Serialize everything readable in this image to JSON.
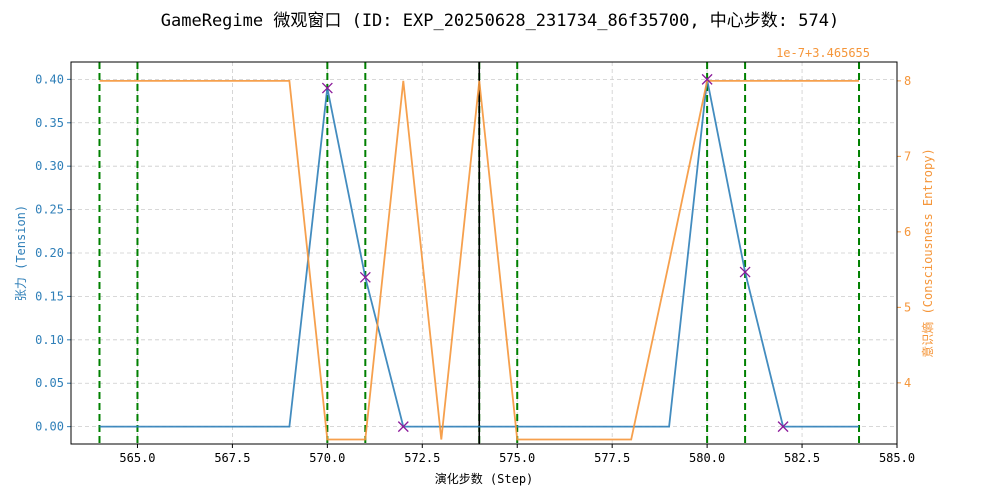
{
  "chart_data": {
    "type": "line",
    "title": "GameRegime 微观窗口 (ID: EXP_20250628_231734_86f35700, 中心步数: 574)",
    "xlabel": "演化步数 (Step)",
    "ylabel_left": "张力 (Tension)",
    "ylabel_right": "意识熵 (Consciousness Entropy)",
    "right_offset_label": "1e-7+3.465655",
    "xlim": [
      563.25,
      585.0
    ],
    "ylim_left": [
      -0.02,
      0.42
    ],
    "ylim_right": [
      3.19,
      8.25
    ],
    "x_ticks": [
      565,
      567.5,
      570,
      572.5,
      575,
      577.5,
      580,
      582.5,
      585
    ],
    "x_tick_labels": [
      "565.0",
      "567.5",
      "570.0",
      "572.5",
      "575.0",
      "577.5",
      "580.0",
      "582.5",
      "585.0"
    ],
    "y_left_ticks": [
      0.0,
      0.05,
      0.1,
      0.15,
      0.2,
      0.25,
      0.3,
      0.35,
      0.4
    ],
    "y_left_tick_labels": [
      "0.00",
      "0.05",
      "0.10",
      "0.15",
      "0.20",
      "0.25",
      "0.30",
      "0.35",
      "0.40"
    ],
    "y_right_ticks": [
      4,
      5,
      6,
      7,
      8
    ],
    "y_right_tick_labels": [
      "4",
      "5",
      "6",
      "7",
      "8"
    ],
    "grid": true,
    "series": [
      {
        "axis": "left",
        "color": "#2f7fb8",
        "x": [
          564,
          565,
          566,
          567,
          568,
          569,
          570,
          571,
          572,
          573,
          574,
          575,
          576,
          577,
          578,
          579,
          580,
          581,
          582,
          583,
          584
        ],
        "values": [
          0.0,
          0.0,
          0.0,
          0.0,
          0.0,
          0.0,
          0.39,
          0.172,
          0.0,
          0.0,
          0.0,
          0.0,
          0.0,
          0.0,
          0.0,
          0.0,
          0.4,
          0.178,
          0.0,
          0.0,
          0.0
        ]
      },
      {
        "axis": "right",
        "color": "#f5963a",
        "x": [
          564,
          565,
          566,
          567,
          568,
          569,
          570,
          571,
          572,
          573,
          574,
          575,
          576,
          577,
          578,
          579,
          580,
          581,
          582,
          583,
          584
        ],
        "values": [
          8.0,
          8.0,
          8.0,
          8.0,
          8.0,
          8.0,
          3.25,
          3.25,
          8.0,
          3.25,
          8.0,
          3.25,
          3.25,
          3.25,
          3.25,
          5.6,
          8.0,
          8.0,
          8.0,
          8.0,
          8.0
        ]
      }
    ],
    "markers": {
      "color": "#8b1a9a",
      "x": [
        570,
        571,
        572,
        580,
        581,
        582
      ],
      "values": [
        0.39,
        0.172,
        0.0,
        0.4,
        0.178,
        0.0
      ]
    },
    "vlines_green": [
      564,
      565,
      570,
      571,
      574,
      575,
      580,
      581,
      584
    ],
    "vline_center": 574,
    "colors": {
      "left_axis": "#2f7fb8",
      "right_axis": "#f5963a",
      "green_line": "#008000",
      "grid": "#cccccc"
    }
  }
}
